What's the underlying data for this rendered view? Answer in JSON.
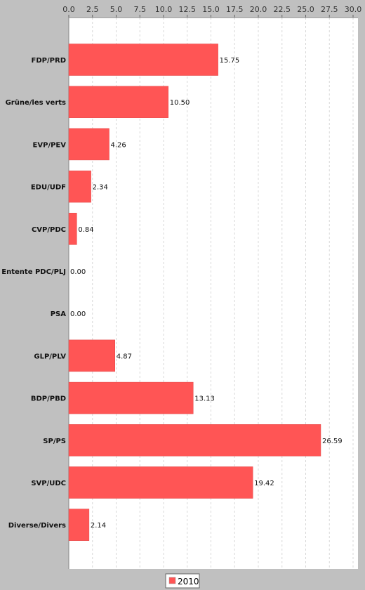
{
  "chart_data": {
    "type": "bar",
    "orientation": "horizontal",
    "categories": [
      "FDP/PRD",
      "Grüne/les verts",
      "EVP/PEV",
      "EDU/UDF",
      "CVP/PDC",
      "Entente PDC/PLJ",
      "PSA",
      "GLP/PLV",
      "BDP/PBD",
      "SP/PS",
      "SVP/UDC",
      "Diverse/Divers"
    ],
    "series": [
      {
        "name": "2010",
        "color": "#ff5555",
        "values": [
          15.75,
          10.5,
          4.26,
          2.34,
          0.84,
          0.0,
          0.0,
          4.87,
          13.13,
          26.59,
          19.42,
          2.14
        ],
        "value_labels": [
          "15.75",
          "10.50",
          "4.26",
          "2.34",
          "0.84",
          "0.00",
          "0.00",
          "4.87",
          "13.13",
          "26.59",
          "19.42",
          "2.14"
        ]
      }
    ],
    "xlim": [
      0,
      30
    ],
    "x_ticks": [
      "0.0",
      "2.5",
      "5.0",
      "7.5",
      "10.0",
      "12.5",
      "15.0",
      "17.5",
      "20.0",
      "22.5",
      "25.0",
      "27.5",
      "30.0"
    ],
    "axis_position": "top",
    "grid": true,
    "legend": "bottom"
  }
}
